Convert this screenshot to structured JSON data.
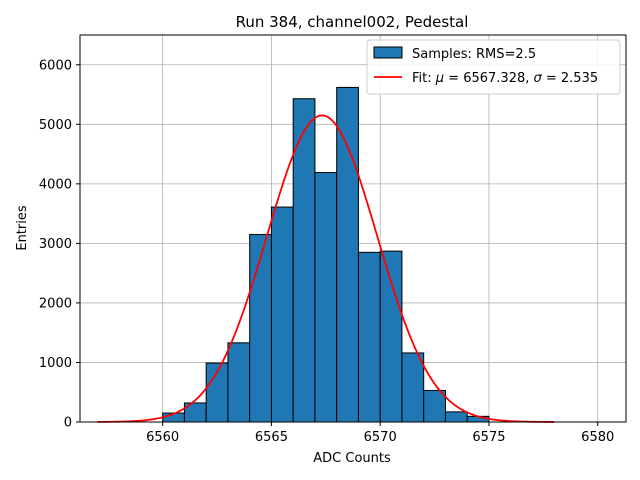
{
  "chart_data": {
    "type": "bar",
    "title": "Run 384, channel002, Pedestal",
    "xlabel": "ADC Counts",
    "ylabel": "Entries",
    "xlim": [
      6556.2,
      6581.3
    ],
    "ylim": [
      0,
      6500
    ],
    "xticks": [
      6560,
      6565,
      6570,
      6575,
      6580
    ],
    "yticks": [
      0,
      1000,
      2000,
      3000,
      4000,
      5000,
      6000
    ],
    "grid": true,
    "legend_position": "top-right",
    "histogram": {
      "name": "Samples: RMS=2.5",
      "color": "#1f77b4",
      "edge_color": "#000000",
      "bins": [
        {
          "left": 6560.0,
          "right": 6561.0,
          "count": 150
        },
        {
          "left": 6561.0,
          "right": 6562.0,
          "count": 320
        },
        {
          "left": 6562.0,
          "right": 6563.0,
          "count": 990
        },
        {
          "left": 6563.0,
          "right": 6564.0,
          "count": 1330
        },
        {
          "left": 6564.0,
          "right": 6565.0,
          "count": 3150
        },
        {
          "left": 6565.0,
          "right": 6566.0,
          "count": 3610
        },
        {
          "left": 6566.0,
          "right": 6567.0,
          "count": 5430
        },
        {
          "left": 6567.0,
          "right": 6568.0,
          "count": 4190
        },
        {
          "left": 6568.0,
          "right": 6569.0,
          "count": 5620
        },
        {
          "left": 6569.0,
          "right": 6570.0,
          "count": 2850
        },
        {
          "left": 6570.0,
          "right": 6571.0,
          "count": 2870
        },
        {
          "left": 6571.0,
          "right": 6572.0,
          "count": 1160
        },
        {
          "left": 6572.0,
          "right": 6573.0,
          "count": 530
        },
        {
          "left": 6573.0,
          "right": 6574.0,
          "count": 170
        },
        {
          "left": 6574.0,
          "right": 6575.0,
          "count": 95
        }
      ]
    },
    "fit": {
      "name_prefix": "Fit: ",
      "mu_symbol": "μ",
      "sigma_symbol": "σ",
      "mu_text": " = 6567.328, ",
      "sigma_text": " = 2.535",
      "mu": 6567.328,
      "sigma": 2.535,
      "amplitude": 5150,
      "x_range": [
        6557.0,
        6578.0
      ],
      "color": "#ff0000"
    }
  }
}
